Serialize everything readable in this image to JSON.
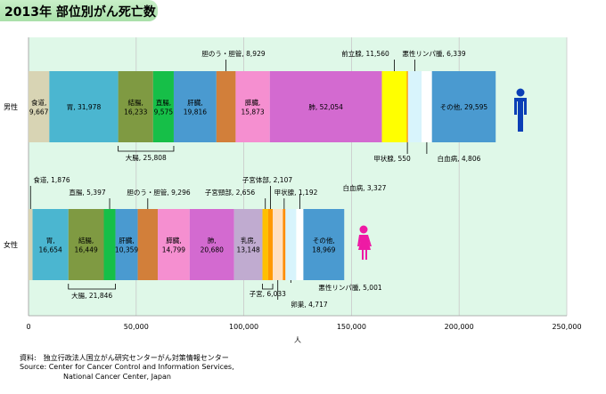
{
  "title": "2013年 部位別がん死亡数",
  "source": [
    "資料:　独立行政法人国立がん研究センターがん対策情報センター",
    "Source: Center for Cancer Control and Information Services,",
    "National Cancer Center, Japan"
  ],
  "colors": {
    "plot_bg": "#dff8e8",
    "male_icon": "#0b3fb6",
    "female_icon": "#ee1aa4"
  },
  "chart_data": {
    "type": "bar",
    "orientation": "horizontal",
    "stacked": true,
    "xlabel": "人",
    "xlim": [
      0,
      250000
    ],
    "xticks": [
      "0",
      "50,000",
      "100,000",
      "150,000",
      "200,000",
      "250,000"
    ],
    "grid": true,
    "categories": [
      "男性",
      "女性"
    ],
    "series": [
      {
        "category": "男性",
        "segments": [
          {
            "name": "食道",
            "value": 9667,
            "label": "食道,\n9,667",
            "color": "#d8d4b4"
          },
          {
            "name": "胃",
            "value": 31978,
            "label": "胃, 31,978",
            "color": "#4bb6d0"
          },
          {
            "name": "結腸",
            "value": 16233,
            "label": "結腸,\n16,233",
            "color": "#7f9a42"
          },
          {
            "name": "直腸",
            "value": 9575,
            "label": "直腸,\n9,575",
            "color": "#16bf48"
          },
          {
            "name": "肝臓",
            "value": 19816,
            "label": "肝臓,\n19,816",
            "color": "#4a9ad0"
          },
          {
            "name": "胆のう・胆管",
            "value": 8929,
            "label": "胆のう・胆管, 8,929",
            "color": "#d27f3a"
          },
          {
            "name": "膵臓",
            "value": 15873,
            "label": "膵臓,\n15,873",
            "color": "#f58fd0"
          },
          {
            "name": "肺",
            "value": 52054,
            "label": "肺, 52,054",
            "color": "#d36ad0"
          },
          {
            "name": "前立腺",
            "value": 11560,
            "label": "前立腺, 11,560",
            "color": "#ffff00"
          },
          {
            "name": "甲状腺",
            "value": 550,
            "label": "甲状腺, 550",
            "color": "#ff8c00"
          },
          {
            "name": "悪性リンパ腫",
            "value": 6339,
            "label": "悪性リンパ腫, 6,339",
            "color": "#d8f4fc"
          },
          {
            "name": "白血病",
            "value": 4806,
            "label": "白血病, 4,806",
            "color": "#ffffff"
          },
          {
            "name": "その他",
            "value": 29595,
            "label": "その他, 29,595",
            "color": "#4a9ad0"
          }
        ],
        "groups": [
          {
            "label": "大腸, 25,808",
            "from": "結腸",
            "to": "直腸"
          }
        ]
      },
      {
        "category": "女性",
        "segments": [
          {
            "name": "食道",
            "value": 1876,
            "label": "食道, 1,876",
            "color": "#d8d4b4"
          },
          {
            "name": "胃",
            "value": 16654,
            "label": "胃,\n16,654",
            "color": "#4bb6d0"
          },
          {
            "name": "結腸",
            "value": 16449,
            "label": "結腸,\n16,449",
            "color": "#7f9a42"
          },
          {
            "name": "直腸",
            "value": 5397,
            "label": "直腸, 5,397",
            "color": "#16bf48"
          },
          {
            "name": "肝臓",
            "value": 10359,
            "label": "肝臓,\n10,359",
            "color": "#4a9ad0"
          },
          {
            "name": "胆のう・胆管",
            "value": 9296,
            "label": "胆のう・胆管, 9,296",
            "color": "#d27f3a"
          },
          {
            "name": "膵臓",
            "value": 14799,
            "label": "膵臓,\n14,799",
            "color": "#f58fd0"
          },
          {
            "name": "肺",
            "value": 20680,
            "label": "肺,\n20,680",
            "color": "#d36ad0"
          },
          {
            "name": "乳房",
            "value": 13148,
            "label": "乳房,\n13,148",
            "color": "#c0abd0"
          },
          {
            "name": "子宮頸部",
            "value": 2656,
            "label": "子宮頸部, 2,656",
            "color": "#ffc000"
          },
          {
            "name": "子宮体部",
            "value": 2107,
            "label": "子宮体部, 2,107",
            "color": "#ff9900"
          },
          {
            "name": "卵巣",
            "value": 4717,
            "label": "卵巣, 4,717",
            "color": "#ffe0c0"
          },
          {
            "name": "甲状腺",
            "value": 1192,
            "label": "甲状腺, 1,192",
            "color": "#ff8c00"
          },
          {
            "name": "悪性リンパ腫",
            "value": 5001,
            "label": "悪性リンパ腫, 5,001",
            "color": "#d8f4fc"
          },
          {
            "name": "白血病",
            "value": 3327,
            "label": "白血病, 3,327",
            "color": "#ffffff"
          },
          {
            "name": "その他",
            "value": 18969,
            "label": "その他,\n18,969",
            "color": "#4a9ad0"
          }
        ],
        "groups": [
          {
            "label": "大腸, 21,846",
            "from": "結腸",
            "to": "直腸"
          },
          {
            "label": "子宮, 6,033",
            "from": "子宮頸部",
            "to": "子宮体部"
          }
        ]
      }
    ]
  }
}
